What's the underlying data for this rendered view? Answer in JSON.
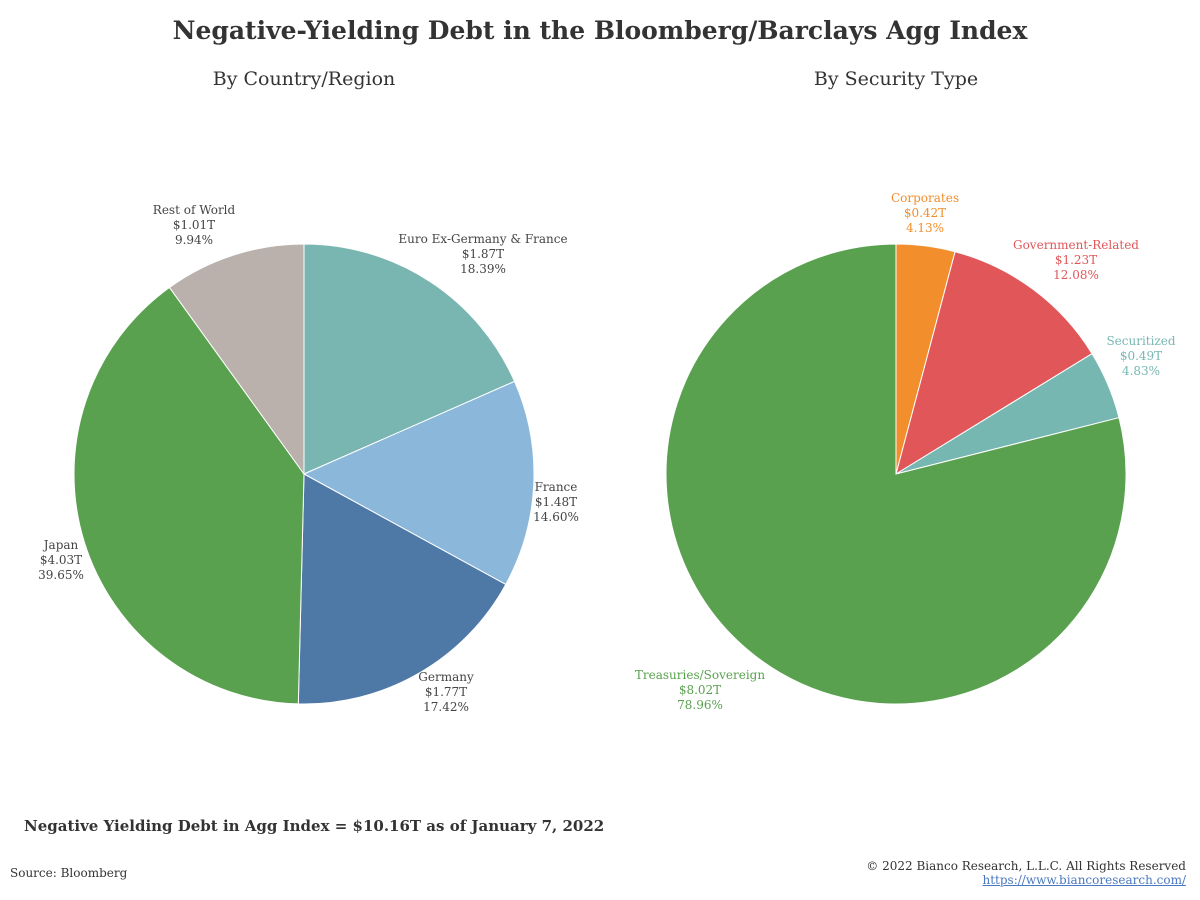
{
  "title": "Negative-Yielding Debt in the Bloomberg/Barclays Agg Index",
  "note": "Negative Yielding Debt in Agg Index = $10.16T as of January 7, 2022",
  "source": "Source: Bloomberg",
  "copyright": "© 2022 Bianco Research, L.L.C. All Rights Reserved",
  "website": "https://www.biancoresearch.com/",
  "chart_data": [
    {
      "type": "pie",
      "title": "By Country/Region",
      "slices": [
        {
          "name": "Euro Ex-Germany & France",
          "value_label": "$1.87T",
          "value": 1.87,
          "percent": 18.39,
          "percent_label": "18.39%",
          "color": "#79b6b1",
          "label_color": "#444444"
        },
        {
          "name": "France",
          "value_label": "$1.48T",
          "value": 1.48,
          "percent": 14.6,
          "percent_label": "14.60%",
          "color": "#8bb8da",
          "label_color": "#444444"
        },
        {
          "name": "Germany",
          "value_label": "$1.77T",
          "value": 1.77,
          "percent": 17.42,
          "percent_label": "17.42%",
          "color": "#4e78a6",
          "label_color": "#444444"
        },
        {
          "name": "Japan",
          "value_label": "$4.03T",
          "value": 4.03,
          "percent": 39.65,
          "percent_label": "39.65%",
          "color": "#59a14f",
          "label_color": "#444444"
        },
        {
          "name": "Rest of World",
          "value_label": "$1.01T",
          "value": 1.01,
          "percent": 9.94,
          "percent_label": "9.94%",
          "color": "#bab0ac",
          "label_color": "#444444"
        }
      ]
    },
    {
      "type": "pie",
      "title": "By Security Type",
      "slices": [
        {
          "name": "Corporates",
          "value_label": "$0.42T",
          "value": 0.42,
          "percent": 4.13,
          "percent_label": "4.13%",
          "color": "#f28e2b",
          "label_color": "#f28e2b"
        },
        {
          "name": "Government-Related",
          "value_label": "$1.23T",
          "value": 1.23,
          "percent": 12.08,
          "percent_label": "12.08%",
          "color": "#e15759",
          "label_color": "#e15759"
        },
        {
          "name": "Securitized",
          "value_label": "$0.49T",
          "value": 0.49,
          "percent": 4.83,
          "percent_label": "4.83%",
          "color": "#76b7b2",
          "label_color": "#76b7b2"
        },
        {
          "name": "Treasuries/Sovereign",
          "value_label": "$8.02T",
          "value": 8.02,
          "percent": 78.96,
          "percent_label": "78.96%",
          "color": "#59a14f",
          "label_color": "#59a14f"
        }
      ]
    }
  ]
}
